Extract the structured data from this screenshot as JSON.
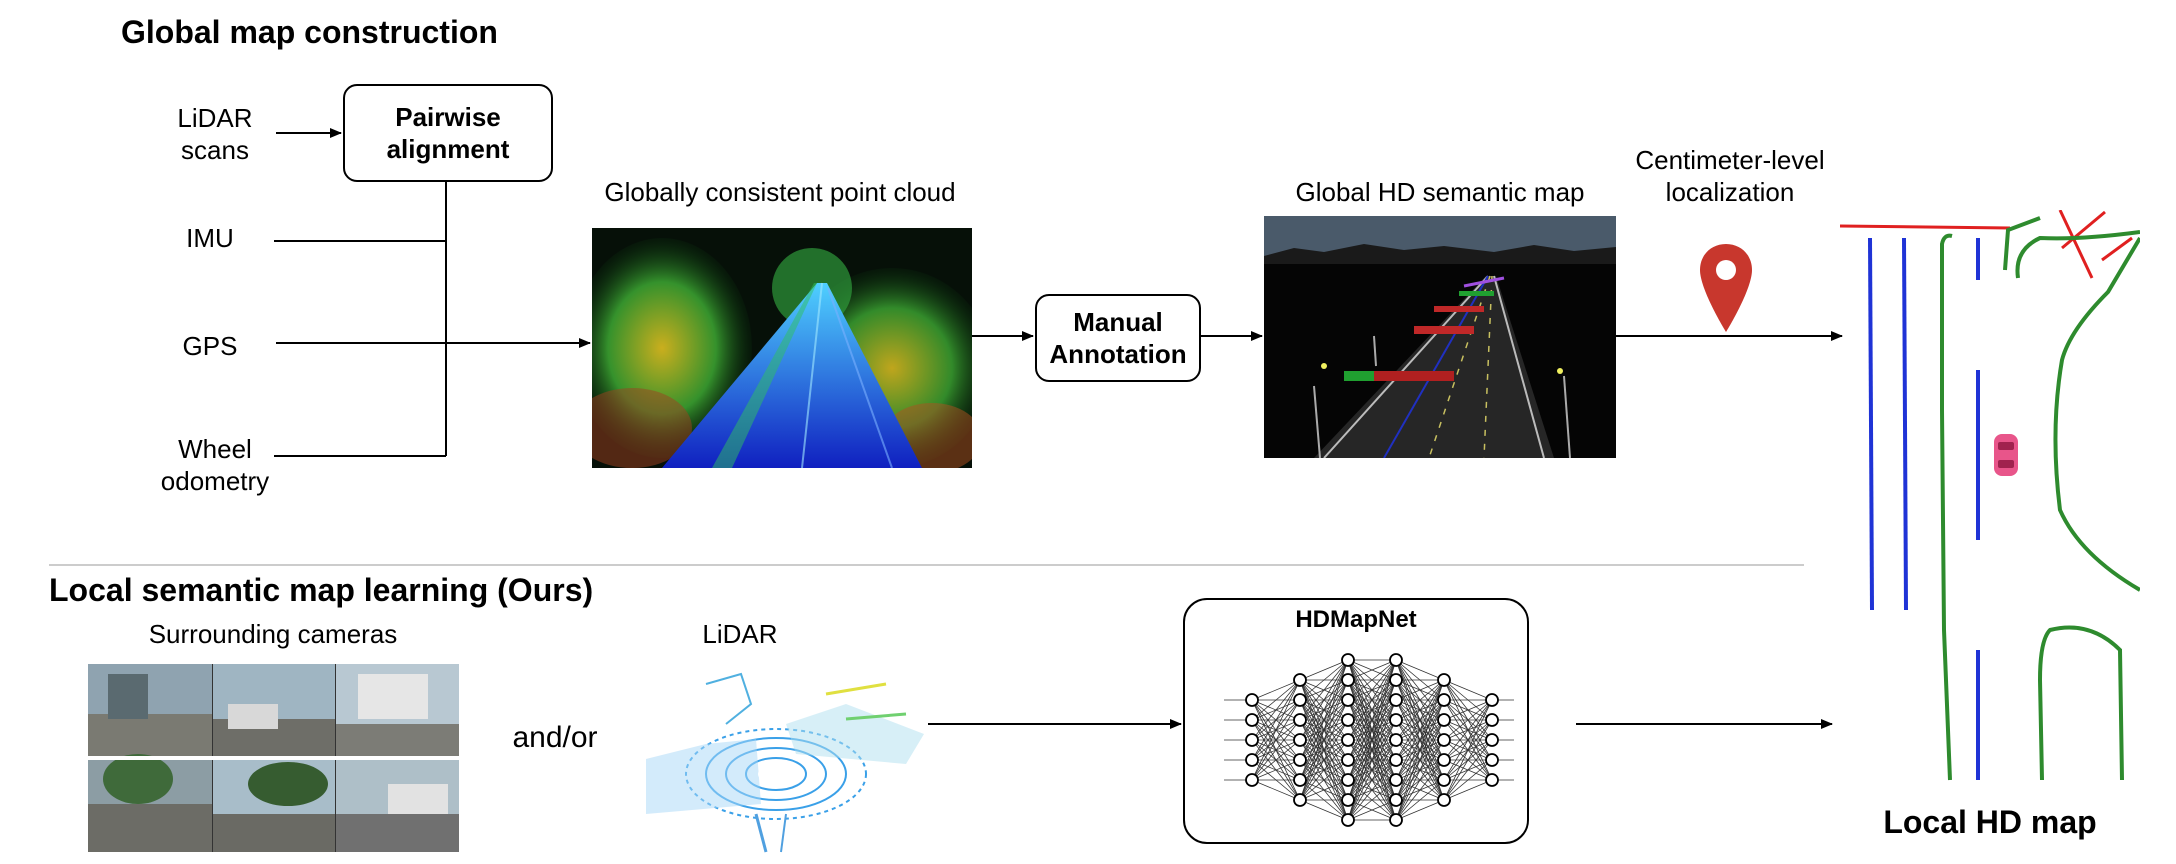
{
  "global": {
    "title": "Global map construction",
    "inputs": {
      "lidar_scans": "LiDAR scans",
      "imu": "IMU",
      "gps": "GPS",
      "wheel_odometry": "Wheel odometry"
    },
    "pairwise_alignment": "Pairwise alignment",
    "point_cloud_label": "Globally consistent point cloud",
    "manual_annotation": "Manual Annotation",
    "semantic_map_label": "Global HD semantic map",
    "localization_label": "Centimeter-level localization"
  },
  "local": {
    "title": "Local semantic map learning (Ours)",
    "cameras_label": "Surrounding cameras",
    "and_or": "and/or",
    "lidar_label": "LiDAR",
    "network_label": "HDMapNet"
  },
  "output": {
    "label": "Local HD map"
  },
  "colors": {
    "lane_divider": "#1f33d6",
    "road_boundary": "#2e8b2e",
    "ped_crossing": "#e02020",
    "pin": "#c8372d",
    "vehicle": "#e8558a"
  },
  "icons": [
    "location-pin-icon",
    "car-icon"
  ]
}
